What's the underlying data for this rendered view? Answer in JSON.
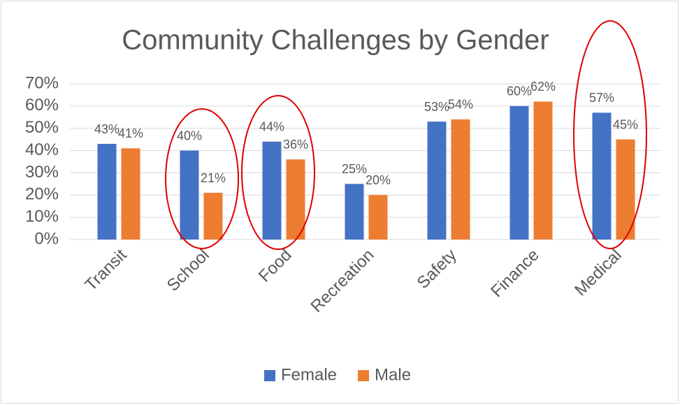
{
  "chart_data": {
    "type": "bar",
    "title": "Community Challenges by Gender",
    "categories": [
      "Transit",
      "School",
      "Food",
      "Recreation",
      "Safety",
      "Finance",
      "Medical"
    ],
    "series": [
      {
        "name": "Female",
        "color": "#4472c4",
        "values": [
          43,
          40,
          44,
          25,
          53,
          60,
          57
        ],
        "value_labels": [
          "43%",
          "40%",
          "44%",
          "25%",
          "53%",
          "60%",
          "57%"
        ]
      },
      {
        "name": "Male",
        "color": "#ed7d31",
        "values": [
          41,
          21,
          36,
          20,
          54,
          62,
          45
        ],
        "value_labels": [
          "41%",
          "21%",
          "36%",
          "20%",
          "54%",
          "62%",
          "45%"
        ]
      }
    ],
    "ylim": [
      0,
      70
    ],
    "yticks": [
      {
        "value": 0,
        "label": "0%"
      },
      {
        "value": 10,
        "label": "10%"
      },
      {
        "value": 20,
        "label": "20%"
      },
      {
        "value": 30,
        "label": "30%"
      },
      {
        "value": 40,
        "label": "40%"
      },
      {
        "value": 50,
        "label": "50%"
      },
      {
        "value": 60,
        "label": "60%"
      },
      {
        "value": 70,
        "label": "70%"
      }
    ],
    "grid": true,
    "legend": "bottom"
  }
}
